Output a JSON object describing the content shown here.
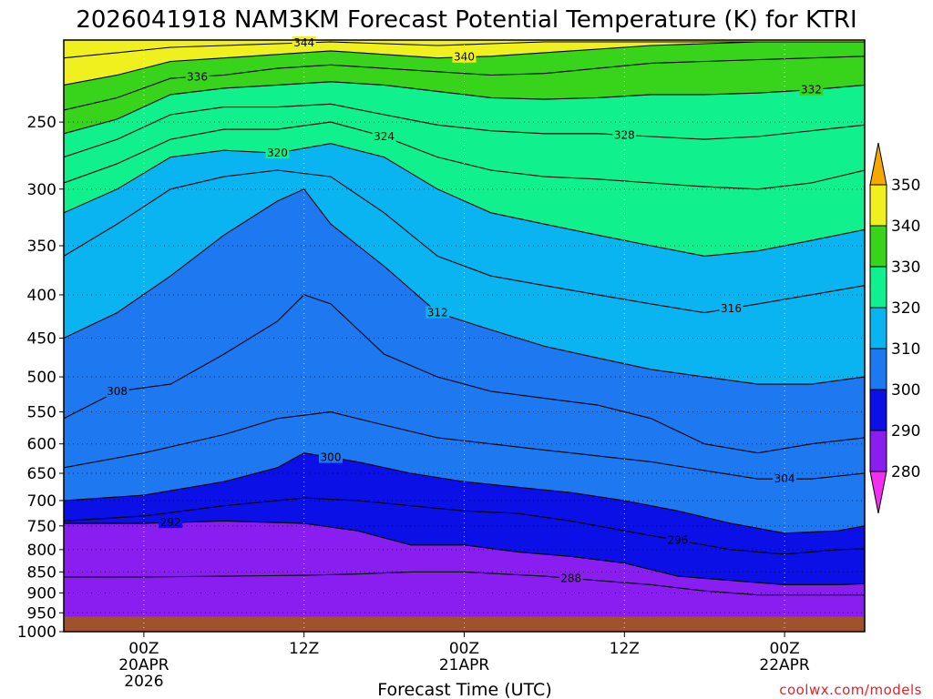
{
  "chart_data": {
    "type": "heatmap",
    "title": "2026041918 NAM3KM Forecast Potential Temperature (K) for KTRI",
    "xlabel": "Forecast Time (UTC)",
    "ylabel": "",
    "y_scale": "log-pressure",
    "ylim": [
      1000,
      200
    ],
    "pressure_ticks": [
      250,
      300,
      350,
      400,
      450,
      500,
      550,
      600,
      650,
      700,
      750,
      800,
      850,
      900,
      950,
      1000
    ],
    "x_ticks": [
      {
        "hour": 6,
        "label": "00Z",
        "date": "20APR",
        "year": "2026"
      },
      {
        "hour": 18,
        "label": "12Z",
        "date": "",
        "year": ""
      },
      {
        "hour": 30,
        "label": "00Z",
        "date": "21APR",
        "year": ""
      },
      {
        "hour": 42,
        "label": "12Z",
        "date": "",
        "year": ""
      },
      {
        "hour": 54,
        "label": "00Z",
        "date": "22APR",
        "year": ""
      }
    ],
    "xlim_hours": [
      0,
      60
    ],
    "grid": true,
    "ground_level_hpa": 960,
    "colorbar": {
      "levels": [
        280,
        290,
        300,
        310,
        320,
        330,
        340,
        350
      ],
      "colors": [
        "#8a1ef0",
        "#0a10e6",
        "#1e78f0",
        "#0ab4f0",
        "#10f08c",
        "#38d41c",
        "#f0f01e",
        "#f5a800"
      ],
      "under_color": "#f030f0",
      "placement": "right"
    },
    "isentropes": [
      {
        "theta": 288,
        "label": "288",
        "points": [
          [
            0,
            862
          ],
          [
            6,
            862
          ],
          [
            12,
            860
          ],
          [
            18,
            858
          ],
          [
            22,
            855
          ],
          [
            26,
            850
          ],
          [
            30,
            850
          ],
          [
            36,
            860
          ],
          [
            40,
            870
          ],
          [
            44,
            880
          ],
          [
            48,
            895
          ],
          [
            52,
            905
          ],
          [
            56,
            905
          ],
          [
            60,
            905
          ]
        ]
      },
      {
        "theta": 292,
        "label": "292",
        "points": [
          [
            0,
            745
          ],
          [
            6,
            745
          ],
          [
            12,
            740
          ],
          [
            18,
            745
          ],
          [
            22,
            760
          ],
          [
            26,
            790
          ],
          [
            30,
            790
          ],
          [
            34,
            805
          ],
          [
            38,
            815
          ],
          [
            42,
            830
          ],
          [
            46,
            860
          ],
          [
            50,
            870
          ],
          [
            54,
            880
          ],
          [
            58,
            880
          ],
          [
            60,
            878
          ]
        ]
      },
      {
        "theta": 296,
        "label": "296",
        "points": [
          [
            0,
            740
          ],
          [
            6,
            730
          ],
          [
            12,
            710
          ],
          [
            18,
            695
          ],
          [
            22,
            700
          ],
          [
            26,
            710
          ],
          [
            30,
            720
          ],
          [
            34,
            725
          ],
          [
            38,
            740
          ],
          [
            42,
            760
          ],
          [
            46,
            780
          ],
          [
            50,
            800
          ],
          [
            54,
            810
          ],
          [
            58,
            800
          ],
          [
            60,
            798
          ]
        ]
      },
      {
        "theta": 300,
        "label": "300",
        "points": [
          [
            0,
            700
          ],
          [
            6,
            690
          ],
          [
            12,
            665
          ],
          [
            16,
            640
          ],
          [
            18,
            615
          ],
          [
            22,
            630
          ],
          [
            26,
            650
          ],
          [
            30,
            665
          ],
          [
            34,
            675
          ],
          [
            38,
            685
          ],
          [
            42,
            700
          ],
          [
            46,
            720
          ],
          [
            50,
            745
          ],
          [
            54,
            765
          ],
          [
            58,
            760
          ],
          [
            60,
            750
          ]
        ]
      },
      {
        "theta": 304,
        "label": "304",
        "points": [
          [
            0,
            640
          ],
          [
            6,
            615
          ],
          [
            12,
            585
          ],
          [
            16,
            560
          ],
          [
            20,
            550
          ],
          [
            24,
            570
          ],
          [
            28,
            590
          ],
          [
            32,
            600
          ],
          [
            36,
            610
          ],
          [
            40,
            620
          ],
          [
            44,
            630
          ],
          [
            48,
            645
          ],
          [
            52,
            660
          ],
          [
            56,
            660
          ],
          [
            60,
            650
          ]
        ]
      },
      {
        "theta": 308,
        "label": "308",
        "points": [
          [
            0,
            560
          ],
          [
            4,
            520
          ],
          [
            8,
            510
          ],
          [
            12,
            470
          ],
          [
            16,
            430
          ],
          [
            18,
            400
          ],
          [
            20,
            410
          ],
          [
            24,
            470
          ],
          [
            28,
            500
          ],
          [
            32,
            520
          ],
          [
            36,
            530
          ],
          [
            40,
            540
          ],
          [
            44,
            560
          ],
          [
            48,
            600
          ],
          [
            52,
            615
          ],
          [
            56,
            600
          ],
          [
            60,
            590
          ]
        ]
      },
      {
        "theta": 312,
        "label": "312",
        "points": [
          [
            0,
            450
          ],
          [
            4,
            420
          ],
          [
            8,
            380
          ],
          [
            12,
            340
          ],
          [
            16,
            310
          ],
          [
            18,
            300
          ],
          [
            20,
            330
          ],
          [
            24,
            370
          ],
          [
            28,
            420
          ],
          [
            32,
            440
          ],
          [
            36,
            460
          ],
          [
            40,
            475
          ],
          [
            44,
            490
          ],
          [
            48,
            500
          ],
          [
            52,
            510
          ],
          [
            56,
            510
          ],
          [
            60,
            500
          ]
        ]
      },
      {
        "theta": 316,
        "label": "316",
        "points": [
          [
            0,
            360
          ],
          [
            4,
            330
          ],
          [
            8,
            300
          ],
          [
            12,
            290
          ],
          [
            16,
            285
          ],
          [
            20,
            290
          ],
          [
            24,
            320
          ],
          [
            28,
            360
          ],
          [
            32,
            380
          ],
          [
            36,
            390
          ],
          [
            40,
            400
          ],
          [
            44,
            410
          ],
          [
            48,
            420
          ],
          [
            52,
            410
          ],
          [
            56,
            400
          ],
          [
            60,
            390
          ]
        ]
      },
      {
        "theta": 320,
        "label": "320",
        "points": [
          [
            0,
            320
          ],
          [
            4,
            300
          ],
          [
            8,
            275
          ],
          [
            12,
            270
          ],
          [
            16,
            272
          ],
          [
            20,
            265
          ],
          [
            24,
            275
          ],
          [
            28,
            300
          ],
          [
            32,
            320
          ],
          [
            36,
            330
          ],
          [
            40,
            340
          ],
          [
            44,
            350
          ],
          [
            48,
            360
          ],
          [
            52,
            355
          ],
          [
            56,
            345
          ],
          [
            60,
            335
          ]
        ]
      },
      {
        "theta": 324,
        "label": "324",
        "points": [
          [
            0,
            295
          ],
          [
            4,
            280
          ],
          [
            8,
            262
          ],
          [
            12,
            255
          ],
          [
            16,
            255
          ],
          [
            20,
            250
          ],
          [
            24,
            260
          ],
          [
            28,
            275
          ],
          [
            32,
            285
          ],
          [
            36,
            290
          ],
          [
            40,
            292
          ],
          [
            44,
            295
          ],
          [
            48,
            298
          ],
          [
            52,
            300
          ],
          [
            56,
            295
          ],
          [
            60,
            285
          ]
        ]
      },
      {
        "theta": 328,
        "label": "328",
        "points": [
          [
            0,
            275
          ],
          [
            4,
            262
          ],
          [
            8,
            245
          ],
          [
            12,
            240
          ],
          [
            16,
            240
          ],
          [
            20,
            238
          ],
          [
            24,
            245
          ],
          [
            28,
            252
          ],
          [
            32,
            256
          ],
          [
            36,
            258
          ],
          [
            40,
            258
          ],
          [
            44,
            260
          ],
          [
            48,
            262
          ],
          [
            52,
            260
          ],
          [
            56,
            256
          ],
          [
            60,
            252
          ]
        ]
      },
      {
        "theta": 332,
        "label": "332",
        "points": [
          [
            0,
            258
          ],
          [
            4,
            248
          ],
          [
            8,
            232
          ],
          [
            12,
            228
          ],
          [
            16,
            226
          ],
          [
            20,
            224
          ],
          [
            24,
            226
          ],
          [
            28,
            230
          ],
          [
            32,
            234
          ],
          [
            36,
            235
          ],
          [
            40,
            234
          ],
          [
            44,
            232
          ],
          [
            48,
            232
          ],
          [
            52,
            231
          ],
          [
            56,
            229
          ],
          [
            60,
            226
          ]
        ]
      },
      {
        "theta": 336,
        "label": "336",
        "points": [
          [
            0,
            242
          ],
          [
            4,
            234
          ],
          [
            8,
            222
          ],
          [
            12,
            220
          ],
          [
            16,
            216
          ],
          [
            20,
            214
          ],
          [
            24,
            216
          ],
          [
            28,
            218
          ],
          [
            32,
            220
          ],
          [
            36,
            219
          ],
          [
            40,
            216
          ],
          [
            44,
            213
          ],
          [
            48,
            212
          ],
          [
            52,
            211
          ],
          [
            56,
            210
          ],
          [
            60,
            209
          ]
        ]
      },
      {
        "theta": 340,
        "label": "340",
        "points": [
          [
            0,
            226
          ],
          [
            4,
            220
          ],
          [
            8,
            212
          ],
          [
            12,
            210
          ],
          [
            16,
            208
          ],
          [
            20,
            206
          ],
          [
            24,
            208
          ],
          [
            28,
            210
          ],
          [
            32,
            209
          ],
          [
            36,
            207
          ],
          [
            40,
            205
          ],
          [
            44,
            203
          ],
          [
            48,
            202
          ],
          [
            52,
            201
          ],
          [
            56,
            201
          ],
          [
            60,
            201
          ]
        ]
      },
      {
        "theta": 344,
        "label": "344",
        "points": [
          [
            0,
            210
          ],
          [
            4,
            207
          ],
          [
            8,
            204
          ],
          [
            12,
            203
          ],
          [
            16,
            202
          ],
          [
            20,
            201
          ],
          [
            24,
            202
          ],
          [
            28,
            203
          ],
          [
            32,
            202
          ],
          [
            36,
            201
          ],
          [
            40,
            201
          ],
          [
            44,
            201
          ],
          [
            48,
            201
          ],
          [
            52,
            201
          ],
          [
            56,
            201
          ],
          [
            60,
            201
          ]
        ]
      }
    ]
  },
  "watermark": "coolwx.com/models"
}
